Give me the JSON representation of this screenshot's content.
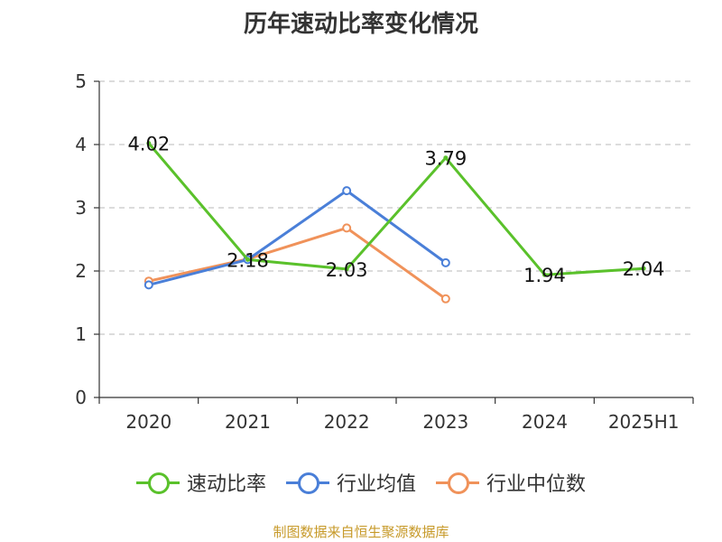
{
  "title": "历年速动比率变化情况",
  "source": "制图数据来自恒生聚源数据库",
  "chart_data": {
    "type": "line",
    "categories": [
      "2020",
      "2021",
      "2022",
      "2023",
      "2024",
      "2025H1"
    ],
    "ylim": [
      0,
      5
    ],
    "yticks": [
      0,
      1,
      2,
      3,
      4,
      5
    ],
    "grid": "horizontal-dashed",
    "legend_position": "bottom",
    "series": [
      {
        "name": "速动比率",
        "color": "#5ac12b",
        "values": [
          4.02,
          2.18,
          2.03,
          3.79,
          1.94,
          2.04
        ],
        "labels": [
          "4.02",
          "2.18",
          "2.03",
          "3.79",
          "1.94",
          "2.04"
        ]
      },
      {
        "name": "行业均值",
        "color": "#4a7fd8",
        "values": [
          1.78,
          2.18,
          3.27,
          2.13,
          null,
          null
        ]
      },
      {
        "name": "行业中位数",
        "color": "#f0925a",
        "values": [
          1.84,
          2.19,
          2.68,
          1.56,
          null,
          null
        ]
      }
    ]
  }
}
